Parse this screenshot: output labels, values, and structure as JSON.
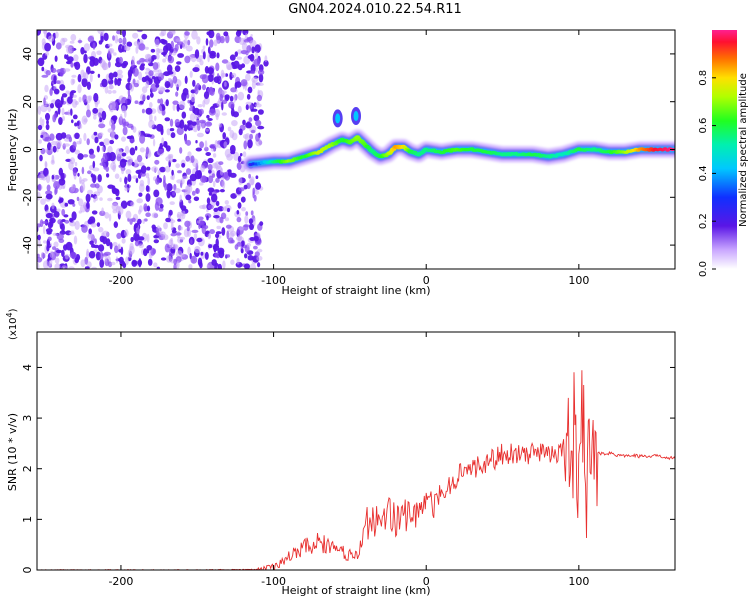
{
  "title": "GN04.2024.010.22.54.R11",
  "chart_data": [
    {
      "type": "heatmap",
      "xlabel": "Height of straight line (km)",
      "ylabel": "Frequency (Hz)",
      "xlim": [
        -255,
        163
      ],
      "ylim": [
        -50,
        50
      ],
      "xticks": [
        -200,
        -100,
        0,
        100
      ],
      "yticks": [
        -40,
        -20,
        0,
        20,
        40
      ],
      "colorbar": {
        "label": "Normalized spectral amplitude",
        "range": [
          0,
          1
        ],
        "ticks": [
          "0.0",
          "0.2",
          "0.4",
          "0.6",
          "0.8"
        ],
        "colormap": "rainbow (violet-blue-cyan-green-yellow-red)"
      },
      "noise_region": {
        "x_range": [
          -255,
          -108
        ],
        "color": "#7a2cf0"
      },
      "ridge": {
        "x": [
          -115,
          -100,
          -90,
          -80,
          -70,
          -62,
          -55,
          -50,
          -45,
          -40,
          -35,
          -30,
          -25,
          -20,
          -15,
          -10,
          -5,
          0,
          10,
          20,
          30,
          40,
          50,
          60,
          70,
          80,
          90,
          100,
          110,
          120,
          130,
          140,
          150,
          163
        ],
        "y": [
          -6,
          -5,
          -5,
          -3,
          -1,
          2,
          4,
          3,
          5,
          2,
          -1,
          -3,
          -2,
          1,
          1,
          -1,
          -2,
          0,
          -1,
          0,
          0,
          -1,
          -2,
          -2,
          -2,
          -3,
          -2,
          0,
          0,
          -1,
          -1,
          0,
          0,
          0
        ],
        "amplitude": [
          0.25,
          0.55,
          0.7,
          0.6,
          0.75,
          0.7,
          0.6,
          0.65,
          0.7,
          0.65,
          0.55,
          0.6,
          0.7,
          0.85,
          0.8,
          0.6,
          0.55,
          0.55,
          0.6,
          0.65,
          0.6,
          0.6,
          0.55,
          0.55,
          0.6,
          0.55,
          0.5,
          0.6,
          0.55,
          0.6,
          0.7,
          0.85,
          0.95,
          1.0
        ]
      },
      "bursts": [
        {
          "x": -58,
          "y": 13
        },
        {
          "x": -46,
          "y": 14
        }
      ]
    },
    {
      "type": "line",
      "xlabel": "Height of straight line (km)",
      "ylabel": "SNR (10 * v/v)",
      "exponent_label": "(x10",
      "exponent_power": "4",
      "xlim": [
        -255,
        163
      ],
      "ylim": [
        0,
        4.7
      ],
      "xticks": [
        -200,
        -100,
        0,
        100
      ],
      "yticks": [
        0,
        1,
        2,
        3,
        4
      ],
      "color": "#e8302f",
      "series": [
        {
          "x": [
            -255,
            -200,
            -150,
            -110,
            -100,
            -90,
            -80,
            -70,
            -65,
            -60,
            -55,
            -50,
            -45,
            -40,
            -35,
            -30,
            -25,
            -20,
            -15,
            -10,
            -5,
            0,
            5,
            10,
            15,
            20,
            25,
            30,
            40,
            50,
            60,
            70,
            80,
            90,
            95,
            98,
            100,
            102,
            105,
            108,
            110,
            120,
            130,
            140,
            150,
            163
          ],
          "y": [
            0.0,
            0.0,
            0.0,
            0.01,
            0.05,
            0.25,
            0.45,
            0.55,
            0.5,
            0.4,
            0.35,
            0.3,
            0.25,
            0.9,
            1.0,
            0.9,
            1.1,
            1.0,
            1.05,
            1.1,
            1.15,
            1.4,
            1.3,
            1.55,
            1.6,
            1.85,
            2.0,
            2.0,
            2.1,
            2.3,
            2.3,
            2.3,
            2.35,
            2.3,
            2.4,
            3.2,
            2.0,
            3.0,
            2.0,
            2.35,
            2.3,
            2.3,
            2.25,
            2.25,
            2.25,
            2.2
          ]
        }
      ]
    }
  ]
}
